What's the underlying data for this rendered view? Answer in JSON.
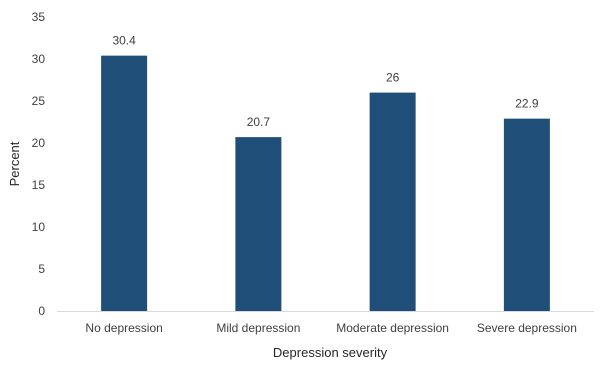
{
  "chart_data": {
    "type": "bar",
    "title": "",
    "categories": [
      "No depression",
      "Mild depression",
      "Moderate depression",
      "Severe depression"
    ],
    "values": [
      30.4,
      20.7,
      26,
      22.9
    ],
    "data_labels": [
      "30.4",
      "20.7",
      "26",
      "22.9"
    ],
    "xlabel": "Depression severity",
    "ylabel": "Percent",
    "ylim": [
      0,
      35
    ],
    "yticks": [
      0,
      5,
      10,
      15,
      20,
      25,
      30,
      35
    ],
    "grid": false,
    "legend": "none",
    "bar_color": "#1f4e79",
    "axis_color": "#d9d9d9"
  }
}
